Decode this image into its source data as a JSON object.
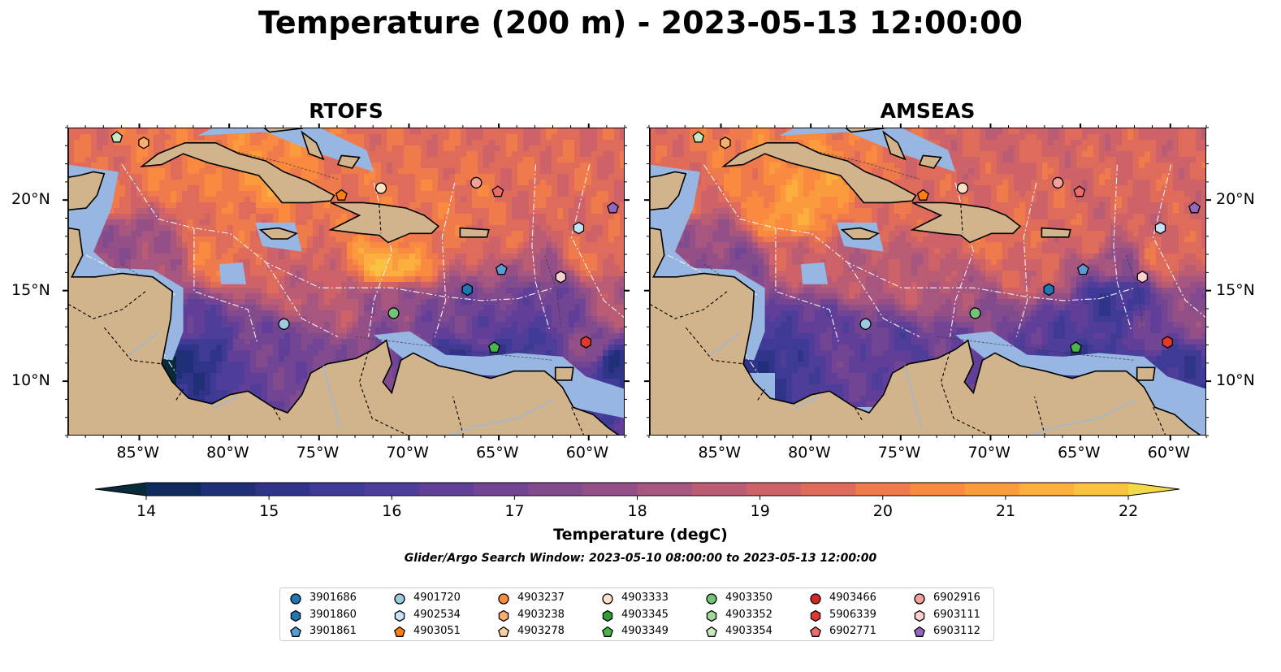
{
  "title": "Temperature (200 m) - 2023-05-13 12:00:00",
  "panels": [
    {
      "name": "RTOFS",
      "coverage": "full"
    },
    {
      "name": "AMSEAS",
      "coverage": "partial"
    }
  ],
  "map": {
    "lon_range": [
      -89,
      -58
    ],
    "lat_range": [
      7,
      24
    ],
    "lon_ticks": [
      "85°W",
      "80°W",
      "75°W",
      "70°W",
      "65°W",
      "60°W"
    ],
    "lon_tick_values": [
      -85,
      -80,
      -75,
      -70,
      -65,
      -60
    ],
    "lat_ticks": [
      "20°N",
      "15°N",
      "10°N"
    ],
    "lat_tick_values": [
      20,
      15,
      10
    ],
    "colors": {
      "land": "#d2b48c",
      "shallow": "#97b6e1",
      "coast": "#000000"
    }
  },
  "colorbar": {
    "label": "Temperature (degC)",
    "ticks": [
      "14",
      "15",
      "16",
      "17",
      "18",
      "19",
      "20",
      "21",
      "22"
    ],
    "range": [
      14,
      22
    ],
    "step": 0.5,
    "colors": [
      "#082a3b",
      "#112a5c",
      "#1f2f78",
      "#2f3489",
      "#3e3a96",
      "#4e3e9a",
      "#613f98",
      "#724594",
      "#824b8e",
      "#944f87",
      "#a6567f",
      "#bb5c75",
      "#cd6268",
      "#df6c5b",
      "#ef7a4c",
      "#f98a40",
      "#fa9b3e",
      "#fcae3e",
      "#fbc142",
      "#f4d947"
    ]
  },
  "subtitle": "Glider/Argo Search Window: 2023-05-10 08:00:00 to 2023-05-13 12:00:00",
  "legend": [
    {
      "id": "3901686",
      "marker": "circle",
      "color": "#1f77b4"
    },
    {
      "id": "3901860",
      "marker": "hexagon",
      "color": "#1f77b4"
    },
    {
      "id": "3901861",
      "marker": "pentagon",
      "color": "#5b9bd5"
    },
    {
      "id": "4901720",
      "marker": "circle",
      "color": "#9ecae1"
    },
    {
      "id": "4902534",
      "marker": "hexagon",
      "color": "#c6e2f7"
    },
    {
      "id": "4903051",
      "marker": "pentagon",
      "color": "#ff7f0e"
    },
    {
      "id": "4903237",
      "marker": "circle",
      "color": "#fd8d3c"
    },
    {
      "id": "4903238",
      "marker": "hexagon",
      "color": "#fdae6b"
    },
    {
      "id": "4903278",
      "marker": "pentagon",
      "color": "#fdd0a2"
    },
    {
      "id": "4903333",
      "marker": "circle",
      "color": "#fde0c5"
    },
    {
      "id": "4903345",
      "marker": "hexagon",
      "color": "#2ca02c"
    },
    {
      "id": "4903349",
      "marker": "pentagon",
      "color": "#4cb44c"
    },
    {
      "id": "4903350",
      "marker": "circle",
      "color": "#74c476"
    },
    {
      "id": "4903352",
      "marker": "hexagon",
      "color": "#a1d99b"
    },
    {
      "id": "4903354",
      "marker": "pentagon",
      "color": "#c7e9c0"
    },
    {
      "id": "4903466",
      "marker": "circle",
      "color": "#d62728"
    },
    {
      "id": "5906339",
      "marker": "hexagon",
      "color": "#e0392b"
    },
    {
      "id": "6902771",
      "marker": "pentagon",
      "color": "#f06a6a"
    },
    {
      "id": "6902916",
      "marker": "circle",
      "color": "#f4a09c"
    },
    {
      "id": "6903111",
      "marker": "hexagon",
      "color": "#fcd0cf"
    },
    {
      "id": "6903112",
      "marker": "pentagon",
      "color": "#9467bd"
    }
  ],
  "floats": [
    {
      "id": "4903354",
      "lon": -86.3,
      "lat": 23.5
    },
    {
      "id": "4903238",
      "lon": -84.8,
      "lat": 23.2
    },
    {
      "id": "4903051",
      "lon": -73.8,
      "lat": 20.3
    },
    {
      "id": "4903333",
      "lon": -71.6,
      "lat": 20.7
    },
    {
      "id": "6902916",
      "lon": -66.3,
      "lat": 21.0
    },
    {
      "id": "6902771",
      "lon": -65.1,
      "lat": 20.5
    },
    {
      "id": "6903112",
      "lon": -58.7,
      "lat": 19.6
    },
    {
      "id": "4902534",
      "lon": -60.6,
      "lat": 18.5
    },
    {
      "id": "3901861",
      "lon": -64.9,
      "lat": 16.2
    },
    {
      "id": "6903111",
      "lon": -61.6,
      "lat": 15.8
    },
    {
      "id": "3901860",
      "lon": -66.8,
      "lat": 15.1
    },
    {
      "id": "4903350",
      "lon": -70.9,
      "lat": 13.8
    },
    {
      "id": "4901720",
      "lon": -77.0,
      "lat": 13.2
    },
    {
      "id": "4903349",
      "lon": -65.3,
      "lat": 11.9
    },
    {
      "id": "5906339",
      "lon": -60.2,
      "lat": 12.2
    }
  ]
}
